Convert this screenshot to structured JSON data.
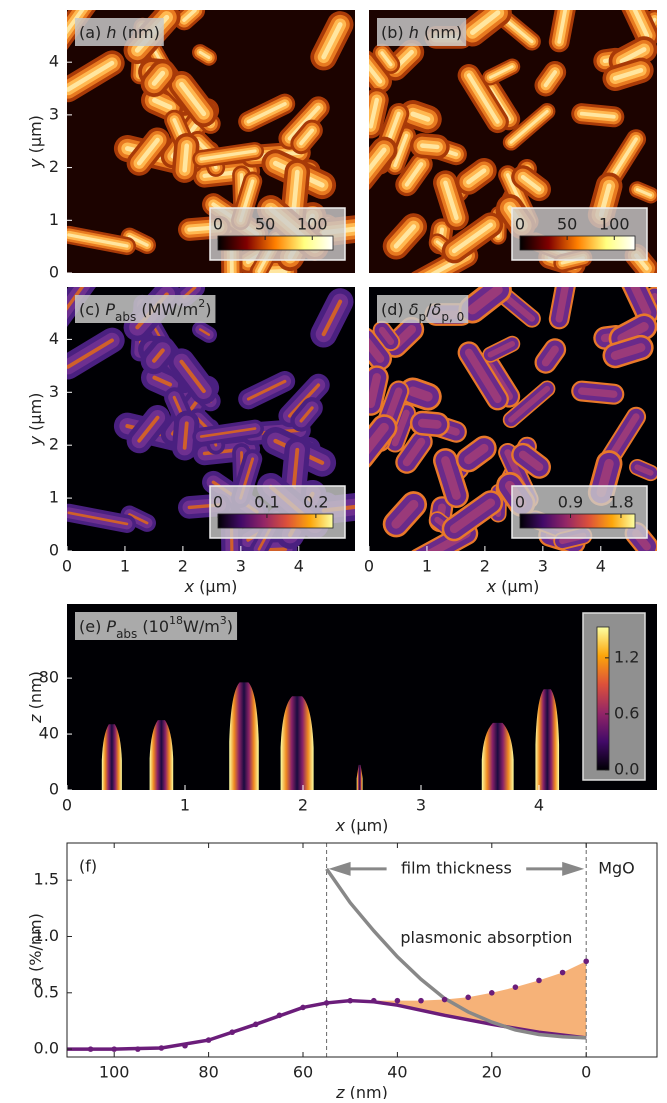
{
  "chart_data": [
    {
      "type": "heatmap",
      "colormap": "afmhot",
      "title_parts": [
        {
          "text": "(a) "
        },
        {
          "text": "h",
          "style": "italic"
        },
        {
          "text": " (nm)"
        }
      ],
      "ylabel_parts": [
        {
          "text": "y",
          "style": "italic"
        },
        {
          "text": " (μm)"
        }
      ],
      "xlim": [
        0,
        4.97
      ],
      "ylim": [
        0,
        4.99
      ],
      "yticks": [
        0,
        1,
        2,
        3,
        4
      ],
      "colorbar": {
        "lim": [
          0,
          122
        ],
        "ticks": [
          0,
          50,
          100
        ]
      }
    },
    {
      "type": "heatmap",
      "colormap": "afmhot",
      "title_parts": [
        {
          "text": "(b) "
        },
        {
          "text": "h",
          "style": "italic"
        },
        {
          "text": " (nm)"
        }
      ],
      "xlim": [
        0,
        4.97
      ],
      "ylim": [
        0,
        4.99
      ],
      "colorbar": {
        "lim": [
          0,
          122
        ],
        "ticks": [
          0,
          50,
          100
        ]
      }
    },
    {
      "type": "heatmap",
      "colormap": "inferno",
      "title_parts": [
        {
          "text": "(c) "
        },
        {
          "text": "P",
          "style": "italic"
        },
        {
          "text": "abs",
          "style": "sub"
        },
        {
          "text": " (MW/m"
        },
        {
          "text": "2",
          "style": "sup"
        },
        {
          "text": ")"
        }
      ],
      "ylabel_parts": [
        {
          "text": "y",
          "style": "italic"
        },
        {
          "text": " (μm)"
        }
      ],
      "xlabel_parts": [
        {
          "text": "x",
          "style": "italic"
        },
        {
          "text": "  (μm)"
        }
      ],
      "xlim": [
        0,
        4.97
      ],
      "ylim": [
        0,
        4.99
      ],
      "xticks": [
        0,
        1,
        2,
        3,
        4
      ],
      "yticks": [
        0,
        1,
        2,
        3,
        4
      ],
      "colorbar": {
        "lim": [
          0,
          0.235
        ],
        "ticks": [
          0,
          0.1,
          0.2
        ]
      }
    },
    {
      "type": "heatmap",
      "colormap": "inferno",
      "title_parts": [
        {
          "text": "(d) "
        },
        {
          "text": "δ",
          "style": "italic"
        },
        {
          "text": "p",
          "style": "sub"
        },
        {
          "text": "/"
        },
        {
          "text": "δ",
          "style": "italic"
        },
        {
          "text": "p, 0",
          "style": "sub"
        }
      ],
      "xlabel_parts": [
        {
          "text": "x",
          "style": "italic"
        },
        {
          "text": "  (μm)"
        }
      ],
      "xlim": [
        0,
        4.97
      ],
      "ylim": [
        0,
        4.99
      ],
      "xticks": [
        0,
        1,
        2,
        3,
        4
      ],
      "colorbar": {
        "lim": [
          0,
          2.05
        ],
        "ticks": [
          0,
          0.9,
          1.8
        ]
      }
    },
    {
      "type": "profile",
      "colormap": "inferno",
      "title_parts": [
        {
          "text": "(e) "
        },
        {
          "text": "P",
          "style": "italic"
        },
        {
          "text": "abs",
          "style": "sub"
        },
        {
          "text": " (10"
        },
        {
          "text": "18",
          "style": "sup"
        },
        {
          "text": "W/m"
        },
        {
          "text": "3",
          "style": "sup"
        },
        {
          "text": ")"
        }
      ],
      "ylabel_parts": [
        {
          "text": "z",
          "style": "italic"
        },
        {
          "text": " (nm)"
        }
      ],
      "xlabel_parts": [
        {
          "text": "x",
          "style": "italic"
        },
        {
          "text": "  (μm)"
        }
      ],
      "xlim": [
        0,
        5
      ],
      "ylim": [
        0,
        133
      ],
      "xticks": [
        0,
        1,
        2,
        3,
        4
      ],
      "yticks": [
        0,
        40,
        80
      ],
      "x": [
        0.38,
        0.8,
        1.5,
        1.95,
        2.48,
        3.65,
        4.07
      ],
      "heights": [
        47,
        50,
        77,
        67,
        18,
        48,
        72
      ],
      "widths": [
        0.17,
        0.2,
        0.25,
        0.28,
        0.05,
        0.27,
        0.2
      ],
      "colorbar": {
        "lim": [
          0,
          1.53
        ],
        "ticks": [
          {
            "value": 0,
            "label": "0.0"
          },
          0.6,
          1.2
        ]
      }
    },
    {
      "type": "line",
      "title": "(f)",
      "ylabel_parts": [
        {
          "text": "a",
          "style": "italic"
        },
        {
          "text": "  (%/nm)"
        }
      ],
      "xlabel_parts": [
        {
          "text": "z",
          "style": "italic"
        },
        {
          "text": "  (nm)"
        }
      ],
      "xlim": [
        110,
        -15
      ],
      "ylim": [
        -0.07,
        1.83
      ],
      "xticks": [
        100,
        80,
        60,
        40,
        20,
        0
      ],
      "yticks": [
        {
          "value": 0,
          "label": "0.0"
        },
        {
          "value": 0.5,
          "label": "0.5"
        },
        {
          "value": 1,
          "label": "1.0"
        },
        {
          "value": 1.5,
          "label": "1.5"
        }
      ],
      "vlines": [
        55,
        0
      ],
      "series": [
        {
          "color": "#6b1d7a",
          "style": "line",
          "x": [
            110,
            100,
            90,
            80,
            70,
            60,
            55,
            50,
            45,
            40,
            30,
            20,
            10,
            0
          ],
          "values": [
            0,
            0,
            0.01,
            0.08,
            0.22,
            0.37,
            0.41,
            0.43,
            0.42,
            0.39,
            0.3,
            0.22,
            0.15,
            0.1
          ]
        },
        {
          "color": "#888888",
          "style": "line",
          "x": [
            55,
            50,
            45,
            40,
            35,
            30,
            25,
            20,
            15,
            10,
            5,
            0
          ],
          "values": [
            1.6,
            1.3,
            1.05,
            0.82,
            0.62,
            0.45,
            0.33,
            0.24,
            0.17,
            0.13,
            0.11,
            0.1
          ]
        },
        {
          "color": "#6b1d7a",
          "style": "dots",
          "x": [
            105,
            100,
            95,
            90,
            85,
            80,
            75,
            70,
            65,
            60,
            55,
            50,
            45,
            40,
            35,
            30,
            25,
            20,
            15,
            10,
            5,
            0
          ],
          "values": [
            0,
            0,
            0,
            0.01,
            0.03,
            0.08,
            0.15,
            0.22,
            0.3,
            0.37,
            0.41,
            0.43,
            0.43,
            0.43,
            0.43,
            0.44,
            0.46,
            0.5,
            0.55,
            0.61,
            0.68,
            0.78
          ]
        }
      ],
      "fill_color": "#f4a460",
      "annotations": {
        "film": "film thickness",
        "substrate": "MgO",
        "fill": "plasmonic absorption"
      }
    }
  ]
}
